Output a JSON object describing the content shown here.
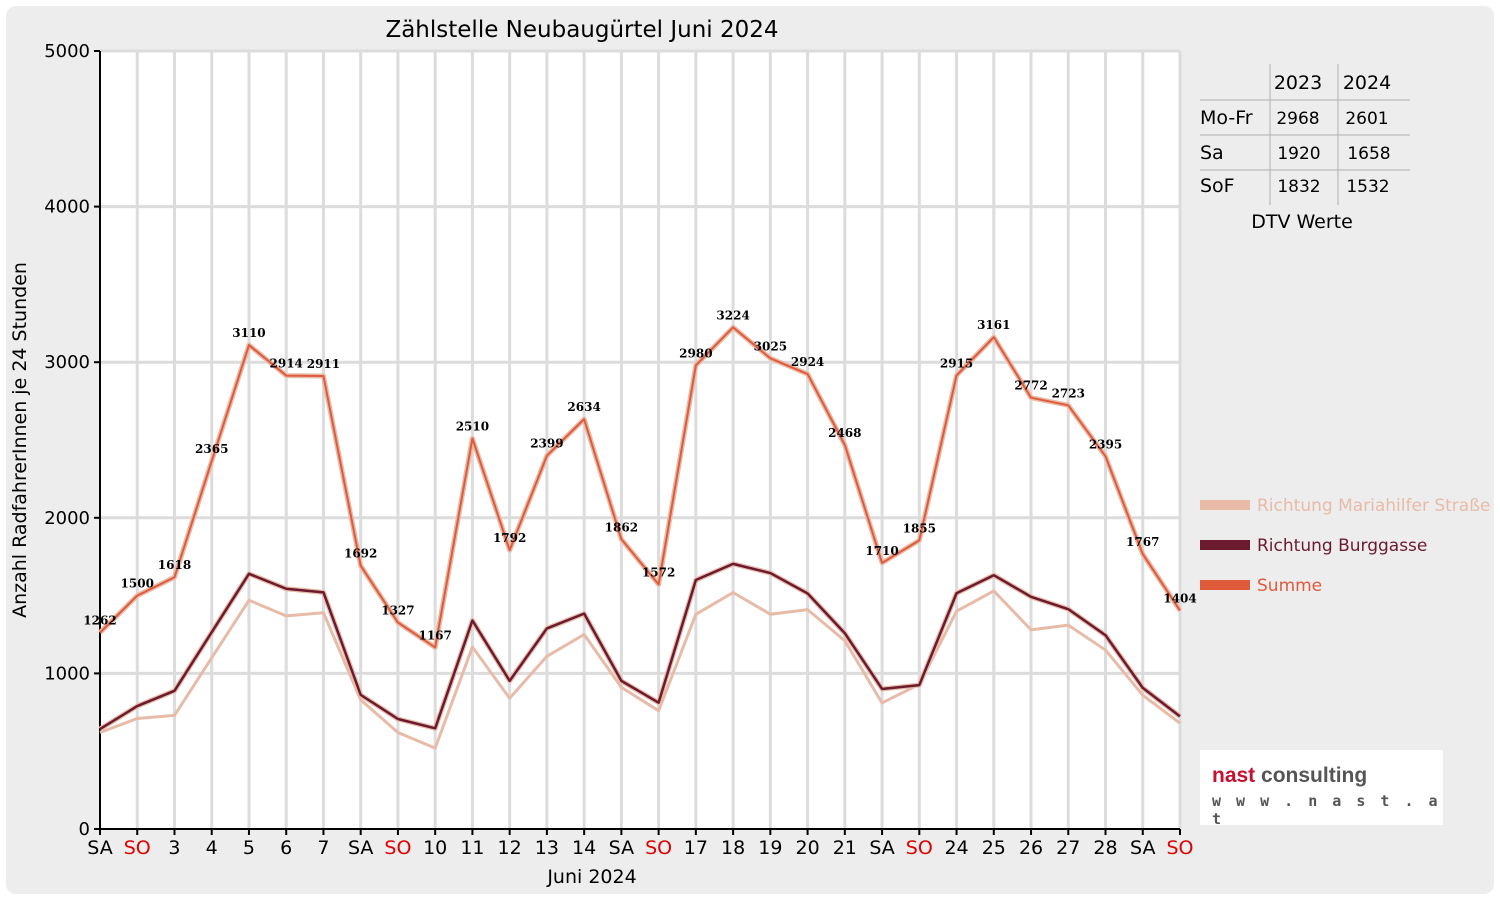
{
  "chart_data": {
    "type": "line",
    "title": "Zählstelle Neubaugürtel Juni 2024",
    "xlabel": "Juni 2024",
    "ylabel": "Anzahl RadfahrerInnen je 24 Stunden",
    "ylim": [
      0,
      5000
    ],
    "yticks": [
      "0",
      "1000",
      "2000",
      "3000",
      "4000",
      "5000"
    ],
    "grid": true,
    "legend_position": "right",
    "categories": [
      "SA",
      "SO",
      "3",
      "4",
      "5",
      "6",
      "7",
      "SA",
      "SO",
      "10",
      "11",
      "12",
      "13",
      "14",
      "SA",
      "SO",
      "17",
      "18",
      "19",
      "20",
      "21",
      "SA",
      "SO",
      "24",
      "25",
      "26",
      "27",
      "28",
      "SA",
      "SO"
    ],
    "weekend_days": [
      "SO"
    ],
    "series": [
      {
        "name": "Richtung Mariahilfer Straße",
        "color": "#e8bba8",
        "values": [
          620,
          710,
          730,
          1100,
          1470,
          1370,
          1390,
          830,
          620,
          520,
          1170,
          840,
          1110,
          1250,
          910,
          760,
          1380,
          1520,
          1380,
          1410,
          1210,
          810,
          930,
          1400,
          1530,
          1280,
          1310,
          1150,
          860,
          680
        ]
      },
      {
        "name": "Richtung Burggasse",
        "color": "#6b1a30",
        "values": [
          642,
          790,
          888,
          1265,
          1640,
          1544,
          1521,
          862,
          707,
          647,
          1340,
          952,
          1289,
          1384,
          952,
          812,
          1600,
          1704,
          1645,
          1514,
          1258,
          900,
          925,
          1515,
          1631,
          1492,
          1413,
          1245,
          907,
          724
        ]
      },
      {
        "name": "Summe",
        "color": "#e05a3c",
        "values": [
          1262,
          1500,
          1618,
          2365,
          3110,
          2914,
          2911,
          1692,
          1327,
          1167,
          2510,
          1792,
          2399,
          2634,
          1862,
          1572,
          2980,
          3224,
          3025,
          2924,
          2468,
          1710,
          1855,
          2915,
          3161,
          2772,
          2723,
          2395,
          1767,
          1404
        ]
      }
    ],
    "data_labels": [
      "1262",
      "1500",
      "1618",
      "2365",
      "3110",
      "2914",
      "2911",
      "1692",
      "1327",
      "1167",
      "2510",
      "1792",
      "2399",
      "2634",
      "1862",
      "1572",
      "2980",
      "3224",
      "3025",
      "2924",
      "2468",
      "1710",
      "1855",
      "2915",
      "3161",
      "2772",
      "2723",
      "2395",
      "1767",
      "1404"
    ]
  },
  "dtv_table": {
    "headers": [
      "2023",
      "2024"
    ],
    "rows": [
      {
        "label": "Mo-Fr",
        "v2023": "2968",
        "v2024": "2601"
      },
      {
        "label": "Sa",
        "v2023": "1920",
        "v2024": "1658"
      },
      {
        "label": "SoF",
        "v2023": "1832",
        "v2024": "1532"
      }
    ],
    "caption": "DTV Werte"
  },
  "logo": {
    "brand_part1": "nast",
    "brand_part2": " consulting",
    "url": "w w w . n a s t . a t"
  }
}
